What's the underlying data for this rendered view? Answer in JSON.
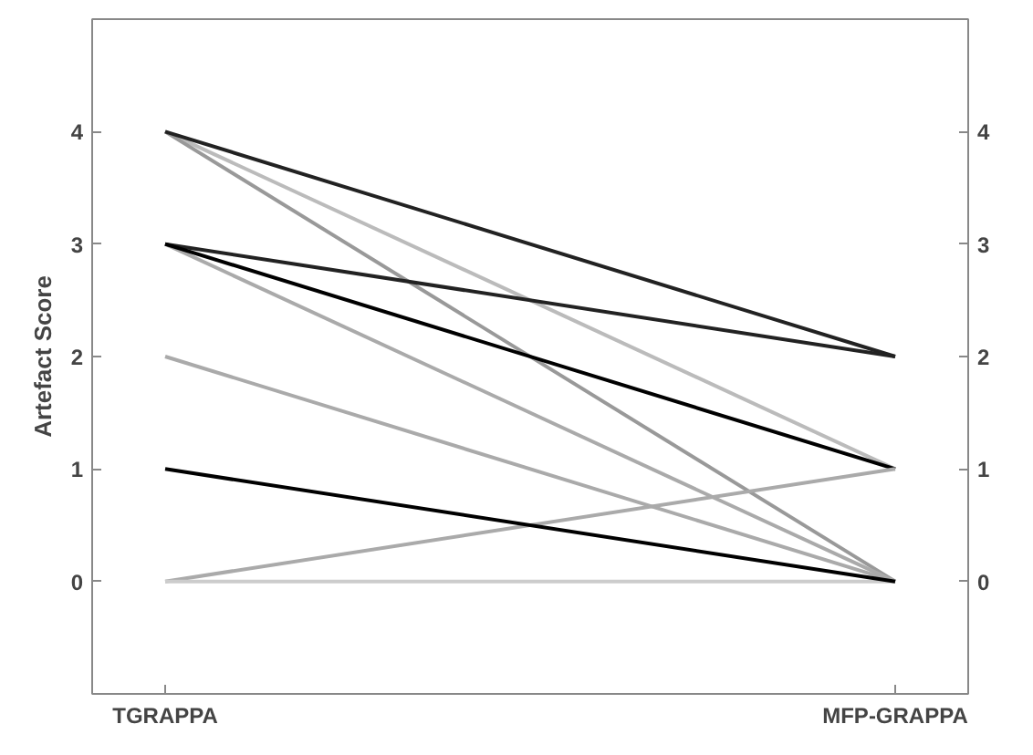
{
  "chart_data": {
    "type": "line",
    "ylabel": "Artefact Score",
    "categories": [
      "TGRAPPA",
      "MFP-GRAPPA"
    ],
    "ylim": [
      -1,
      5
    ],
    "yticks": [
      0,
      1,
      2,
      3,
      4
    ],
    "y2lim": [
      -1,
      5
    ],
    "y2ticks": [
      0,
      1,
      2,
      3,
      4
    ],
    "grid": false,
    "marker": "none",
    "line_style": "solid",
    "series": [
      {
        "color": "#bbbbbb",
        "values": [
          4,
          1
        ]
      },
      {
        "color": "#999999",
        "values": [
          4,
          0
        ]
      },
      {
        "color": "#222222",
        "values": [
          4,
          2
        ]
      },
      {
        "color": "#aaaaaa",
        "values": [
          3,
          0
        ]
      },
      {
        "color": "#222222",
        "values": [
          3,
          2
        ]
      },
      {
        "color": "#000000",
        "values": [
          3,
          1
        ]
      },
      {
        "color": "#aaaaaa",
        "values": [
          2,
          0
        ]
      },
      {
        "color": "#aaaaaa",
        "values": [
          0,
          1
        ]
      },
      {
        "color": "#cccccc",
        "values": [
          0,
          0
        ]
      },
      {
        "color": "#000000",
        "values": [
          1,
          0
        ]
      }
    ]
  }
}
